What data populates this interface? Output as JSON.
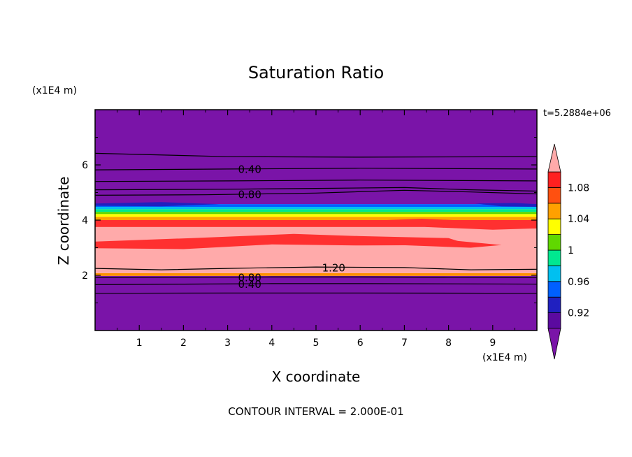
{
  "chart_data": {
    "type": "heatmap",
    "title": "Saturation Ratio",
    "xlabel": "X coordinate",
    "ylabel": "Z coordinate",
    "x_unit": "(x1E4 m)",
    "y_unit": "(x1E4 m)",
    "time_label": "t=5.2884e+06",
    "footer": "CONTOUR INTERVAL = 2.000E-01",
    "xlim": [
      0,
      10
    ],
    "ylim": [
      0,
      8
    ],
    "x_ticks": [
      1,
      2,
      3,
      4,
      5,
      6,
      7,
      8,
      9
    ],
    "y_ticks": [
      2,
      4,
      6
    ],
    "colorbar": {
      "levels": [
        0.9,
        0.92,
        0.94,
        0.96,
        0.98,
        1.0,
        1.02,
        1.04,
        1.06,
        1.08,
        1.1
      ],
      "labels": [
        "0.92",
        "0.96",
        "1",
        "1.04",
        "1.08"
      ],
      "colors": [
        "#5b0aa0",
        "#2020c0",
        "#0060ff",
        "#00c0f0",
        "#00e890",
        "#60d800",
        "#ffff00",
        "#ffa000",
        "#ff5010",
        "#ff2020"
      ],
      "under_color": "#7a14a8",
      "over_color": "#ffaaaa"
    },
    "bands": [
      {
        "z0": 0.0,
        "z1": 1.98,
        "color": "#7a14a8"
      },
      {
        "z0": 1.98,
        "z1": 2.08,
        "color": "#ff9000"
      },
      {
        "z0": 2.08,
        "z1": 3.75,
        "color": "#ffaaaa"
      },
      {
        "z0": 3.75,
        "z1": 4.0,
        "color": "#ff3030"
      },
      {
        "z0": 4.0,
        "z1": 4.12,
        "color": "#ffa000"
      },
      {
        "z0": 4.12,
        "z1": 4.22,
        "color": "#ffff00"
      },
      {
        "z0": 4.22,
        "z1": 4.3,
        "color": "#60d800"
      },
      {
        "z0": 4.3,
        "z1": 4.4,
        "color": "#00e890"
      },
      {
        "z0": 4.4,
        "z1": 4.48,
        "color": "#00c0f0"
      },
      {
        "z0": 4.48,
        "z1": 4.58,
        "color": "#0060ff"
      },
      {
        "z0": 4.58,
        "z1": 8.0,
        "color": "#7a14a8"
      }
    ],
    "patches": [
      {
        "color": "#ff3030",
        "points": [
          [
            0,
            3.22
          ],
          [
            2.2,
            3.35
          ],
          [
            4.5,
            3.5
          ],
          [
            6,
            3.42
          ],
          [
            8,
            3.35
          ],
          [
            8.5,
            3.1
          ],
          [
            6,
            3.08
          ],
          [
            4,
            3.12
          ],
          [
            2,
            2.95
          ],
          [
            0,
            2.98
          ]
        ]
      },
      {
        "color": "#ff3030",
        "points": [
          [
            5.4,
            3.3
          ],
          [
            7.5,
            3.35
          ],
          [
            9.2,
            3.1
          ],
          [
            8.5,
            3.0
          ],
          [
            6.5,
            3.12
          ]
        ]
      },
      {
        "color": "#ff3030",
        "points": [
          [
            6.6,
            4.0
          ],
          [
            7.4,
            4.05
          ],
          [
            8.8,
            3.95
          ],
          [
            10,
            3.95
          ],
          [
            10,
            3.7
          ],
          [
            9,
            3.65
          ],
          [
            7.5,
            3.75
          ]
        ]
      },
      {
        "color": "#2020c0",
        "points": [
          [
            0,
            4.6
          ],
          [
            1.5,
            4.65
          ],
          [
            2.8,
            4.58
          ],
          [
            1.5,
            4.5
          ],
          [
            0,
            4.52
          ]
        ]
      },
      {
        "color": "#2020c0",
        "points": [
          [
            8.6,
            4.6
          ],
          [
            9.5,
            4.62
          ],
          [
            10,
            4.58
          ],
          [
            10,
            4.48
          ],
          [
            9.2,
            4.5
          ]
        ]
      }
    ],
    "contours": [
      {
        "value": "0.40",
        "path": [
          [
            0,
            1.66
          ],
          [
            2,
            1.68
          ],
          [
            4,
            1.7
          ],
          [
            6,
            1.7
          ],
          [
            8,
            1.69
          ],
          [
            10,
            1.68
          ]
        ],
        "label_at": 3.5
      },
      {
        "value": "0.80",
        "path": [
          [
            0,
            1.92
          ],
          [
            2,
            1.93
          ],
          [
            4,
            1.94
          ],
          [
            6,
            1.94
          ],
          [
            8,
            1.93
          ],
          [
            10,
            1.92
          ]
        ],
        "label_at": 3.5
      },
      {
        "value": "1.20",
        "path": [
          [
            0,
            2.25
          ],
          [
            1.5,
            2.2
          ],
          [
            3,
            2.25
          ],
          [
            5,
            2.3
          ],
          [
            7,
            2.28
          ],
          [
            8.5,
            2.2
          ],
          [
            10,
            2.22
          ]
        ],
        "label_at": 5.4
      },
      {
        "value": "",
        "path": [
          [
            0,
            1.35
          ],
          [
            3,
            1.36
          ],
          [
            6,
            1.36
          ],
          [
            10,
            1.35
          ]
        ],
        "label_at": -1
      },
      {
        "value": "",
        "path": [
          [
            0,
            5.1
          ],
          [
            3,
            5.12
          ],
          [
            5,
            5.15
          ],
          [
            7,
            5.18
          ],
          [
            8.5,
            5.1
          ],
          [
            10,
            5.05
          ]
        ],
        "label_at": -1
      },
      {
        "value": "0.80",
        "path": [
          [
            0,
            4.9
          ],
          [
            2.5,
            4.92
          ],
          [
            5,
            4.98
          ],
          [
            7,
            5.08
          ],
          [
            8.5,
            5.02
          ],
          [
            10,
            4.95
          ]
        ],
        "label_at": 3.5
      },
      {
        "value": "",
        "path": [
          [
            0,
            5.4
          ],
          [
            3,
            5.42
          ],
          [
            6,
            5.45
          ],
          [
            10,
            5.42
          ]
        ],
        "label_at": -1
      },
      {
        "value": "0.40",
        "path": [
          [
            0,
            5.82
          ],
          [
            3,
            5.85
          ],
          [
            6,
            5.88
          ],
          [
            10,
            5.85
          ]
        ],
        "label_at": 3.5
      },
      {
        "value": "",
        "path": [
          [
            0,
            6.42
          ],
          [
            3,
            6.3
          ],
          [
            6,
            6.28
          ],
          [
            10,
            6.3
          ]
        ],
        "label_at": -1
      }
    ]
  }
}
